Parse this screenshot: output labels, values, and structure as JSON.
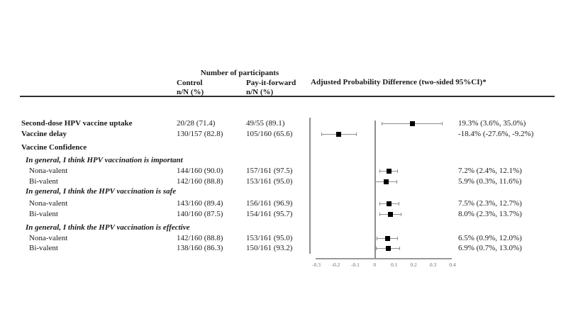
{
  "header": {
    "group_title": "Number of participants",
    "col_control": "Control",
    "col_control_sub": "n/N (%)",
    "col_payforward": "Pay-it-forward",
    "col_payforward_sub": "n/N (%)",
    "plot_title": "Adjusted Probability Difference (two-sided 95%CI)*"
  },
  "chart_data": {
    "type": "forest",
    "xlim": [
      -0.3,
      0.4
    ],
    "zero_line": 0,
    "grid": false,
    "axis_ticks": [
      "-0.3",
      "-0.2",
      "-0.1",
      "0",
      "0.1",
      "0.2",
      "0.3",
      "0.4"
    ],
    "axis_tick_values": [
      -0.3,
      -0.2,
      -0.1,
      0,
      0.1,
      0.2,
      0.3,
      0.4
    ],
    "rows": [
      {
        "label": "Second-dose HPV vaccine uptake",
        "style": "bold",
        "indent": 0,
        "control": "20/28 (71.4)",
        "pay_it_forward": "49/55 (89.1)",
        "estimate": 0.193,
        "ci_low": 0.036,
        "ci_high": 0.35,
        "ci_text": "19.3% (3.6%, 35.0%)"
      },
      {
        "label": "Vaccine delay",
        "style": "bold",
        "indent": 0,
        "control": "130/157 (82.8)",
        "pay_it_forward": "105/160 (65.6)",
        "estimate": -0.184,
        "ci_low": -0.276,
        "ci_high": -0.092,
        "ci_text": "-18.4% (-27.6%, -9.2%)"
      },
      {
        "label": "Vaccine Confidence",
        "style": "bold",
        "indent": 0
      },
      {
        "label": "In general, I think HPV vaccination is important",
        "style": "bold-italic",
        "indent": 1
      },
      {
        "label": "Nona-valent",
        "style": "plain",
        "indent": 2,
        "control": "144/160 (90.0)",
        "pay_it_forward": "157/161 (97.5)",
        "estimate": 0.072,
        "ci_low": 0.024,
        "ci_high": 0.121,
        "ci_text": "7.2% (2.4%, 12.1%)"
      },
      {
        "label": "Bi-valent",
        "style": "plain",
        "indent": 2,
        "control": "142/160 (88.8)",
        "pay_it_forward": "153/161 (95.0)",
        "estimate": 0.059,
        "ci_low": 0.003,
        "ci_high": 0.116,
        "ci_text": "5.9% (0.3%, 11.6%)"
      },
      {
        "label": "In general, I think the HPV vaccination is safe",
        "style": "bold-italic",
        "indent": 1
      },
      {
        "label": "Nona-valent",
        "style": "plain",
        "indent": 2,
        "control": "143/160 (89.4)",
        "pay_it_forward": "156/161 (96.9)",
        "estimate": 0.075,
        "ci_low": 0.023,
        "ci_high": 0.127,
        "ci_text": "7.5% (2.3%, 12.7%)"
      },
      {
        "label": "Bi-valent",
        "style": "plain",
        "indent": 2,
        "control": "140/160 (87.5)",
        "pay_it_forward": "154/161 (95.7)",
        "estimate": 0.08,
        "ci_low": 0.023,
        "ci_high": 0.137,
        "ci_text": "8.0% (2.3%, 13.7%)"
      },
      {
        "label": "In general, I think the HPV vaccination is effective",
        "style": "bold-italic",
        "indent": 1
      },
      {
        "label": "Nona-valent",
        "style": "plain",
        "indent": 2,
        "control": "142/160 (88.8)",
        "pay_it_forward": "153/161 (95.0)",
        "estimate": 0.065,
        "ci_low": 0.009,
        "ci_high": 0.12,
        "ci_text": "6.5% (0.9%, 12.0%)"
      },
      {
        "label": "Bi-valent",
        "style": "plain",
        "indent": 2,
        "control": "138/160 (86.3)",
        "pay_it_forward": "150/161 (93.2)",
        "estimate": 0.069,
        "ci_low": 0.007,
        "ci_high": 0.13,
        "ci_text": "6.9% (0.7%, 13.0%)"
      }
    ]
  },
  "colors": {
    "marker": "#000000",
    "ci_line": "#8f8f8f",
    "axis_line": "#9a9a9a",
    "axis_text": "#6e6e6e",
    "header_rule": "#2e2e2e",
    "text": "#1a1a1a",
    "background": "#ffffff"
  }
}
